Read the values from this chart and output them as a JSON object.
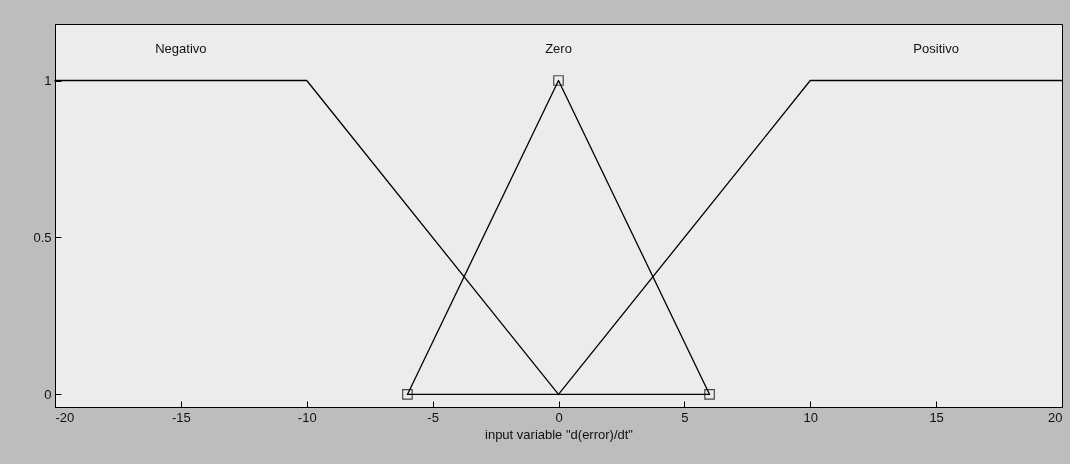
{
  "chart_data": {
    "type": "line",
    "xlabel": "input variable \"d(error)/dt\"",
    "xlim": [
      -20,
      20
    ],
    "xticks": [
      -20,
      -15,
      -10,
      -5,
      0,
      5,
      10,
      15,
      20
    ],
    "ylim": [
      -0.04,
      1.18
    ],
    "yticks": [
      0,
      0.5,
      1
    ],
    "legend": false,
    "series": [
      {
        "name": "Negativo",
        "color": "#000000",
        "x": [
          -20,
          -10,
          0
        ],
        "values": [
          1,
          1,
          0
        ]
      },
      {
        "name": "Zero",
        "color": "#000000",
        "x": [
          -6,
          0,
          6
        ],
        "values": [
          0,
          1,
          0
        ],
        "marker": "square"
      },
      {
        "name": "Positivo",
        "color": "#000000",
        "x": [
          0,
          10,
          20
        ],
        "values": [
          0,
          1,
          1
        ]
      },
      {
        "color": "#000000",
        "x": [
          -6,
          6
        ],
        "values": [
          0,
          0
        ]
      }
    ]
  }
}
